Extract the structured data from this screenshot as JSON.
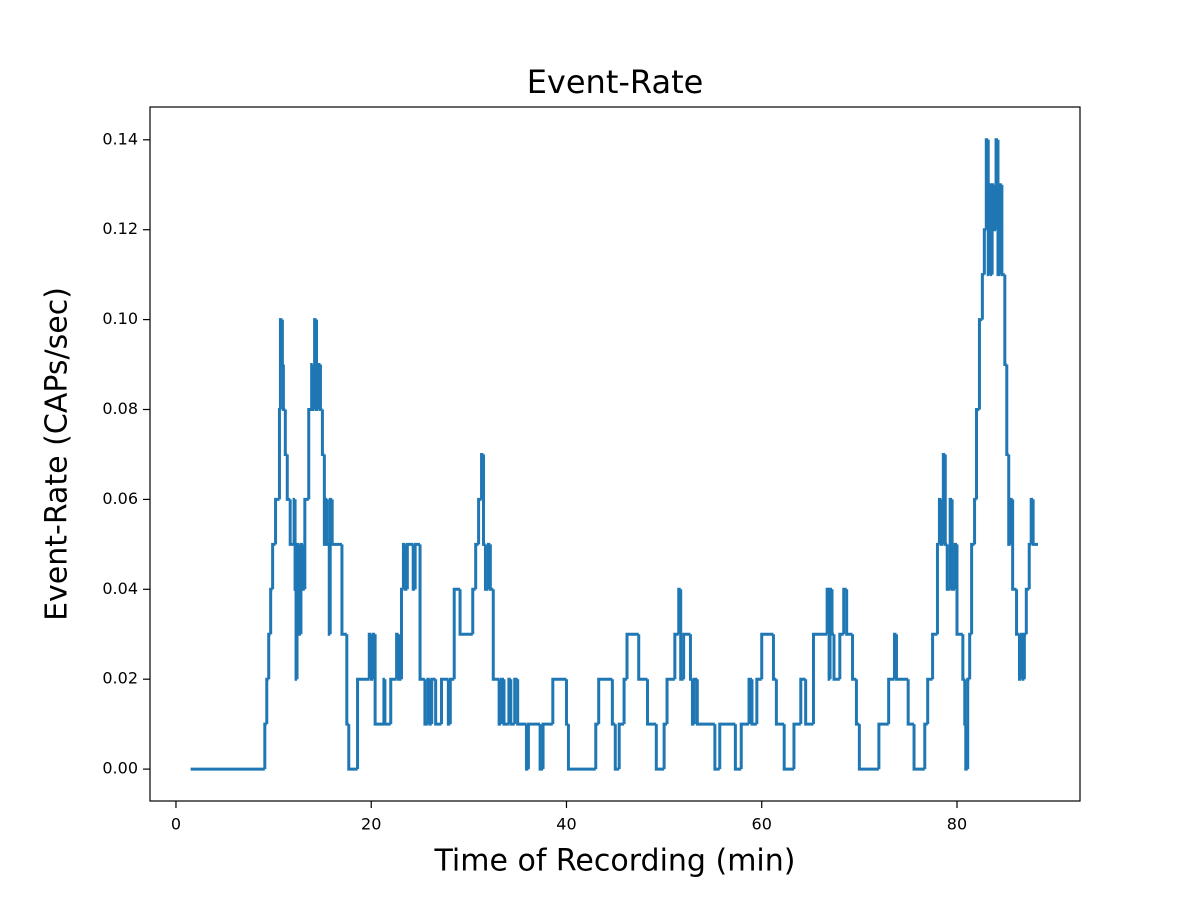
{
  "chart_data": {
    "type": "line",
    "step": "post",
    "title": "Event-Rate",
    "xlabel": "Time of Recording (min)",
    "ylabel": "Event-Rate (CAPs/sec)",
    "color": "#1f77b4",
    "xlim": [
      -2.66,
      92.6
    ],
    "ylim": [
      -0.0071,
      0.1473
    ],
    "xticks": [
      0,
      20,
      40,
      60,
      80
    ],
    "yticks": [
      {
        "value": 0,
        "label": "0.00"
      },
      {
        "value": 0.02,
        "label": "0.02"
      },
      {
        "value": 0.04,
        "label": "0.04"
      },
      {
        "value": 0.06,
        "label": "0.06"
      },
      {
        "value": 0.08,
        "label": "0.08"
      },
      {
        "value": 0.1,
        "label": "0.10"
      },
      {
        "value": 0.12,
        "label": "0.12"
      },
      {
        "value": 0.14,
        "label": "0.14"
      }
    ],
    "x": [
      1.5,
      9.1,
      9.3,
      9.5,
      9.7,
      9.9,
      10.2,
      10.6,
      10.7,
      10.9,
      11.0,
      11.2,
      11.4,
      11.7,
      12.1,
      12.2,
      12.3,
      12.4,
      12.6,
      12.8,
      13.0,
      13.2,
      13.6,
      13.9,
      14.0,
      14.2,
      14.4,
      14.6,
      14.8,
      15.0,
      15.2,
      15.4,
      15.5,
      15.7,
      15.8,
      16.0,
      17.0,
      17.5,
      17.7,
      18.6,
      19.8,
      20.0,
      20.2,
      20.4,
      21.3,
      21.4,
      22.0,
      22.6,
      22.8,
      23.1,
      23.3,
      23.5,
      23.7,
      24.3,
      24.5,
      25.0,
      25.5,
      25.8,
      26.0,
      26.2,
      26.6,
      27.2,
      27.9,
      28.1,
      28.5,
      29.1,
      30.4,
      30.7,
      31.0,
      31.3,
      31.5,
      31.7,
      32.0,
      32.2,
      32.5,
      33.1,
      33.3,
      33.6,
      34.1,
      34.3,
      34.7,
      35.0,
      35.9,
      36.1,
      37.3,
      37.6,
      38.6,
      40.0,
      40.2,
      43.0,
      43.3,
      44.7,
      45.0,
      45.4,
      45.9,
      46.2,
      47.4,
      48.3,
      49.2,
      50.0,
      50.3,
      51.1,
      51.5,
      51.7,
      52.0,
      52.7,
      52.9,
      53.1,
      53.4,
      55.2,
      55.7,
      57.3,
      57.9,
      58.7,
      59.0,
      59.5,
      60.0,
      61.2,
      61.5,
      62.3,
      63.3,
      64.0,
      64.5,
      65.3,
      66.7,
      66.9,
      67.0,
      67.2,
      67.4,
      68.0,
      68.4,
      68.7,
      69.3,
      69.7,
      70.0,
      72.0,
      73.0,
      73.6,
      73.8,
      75.0,
      75.6,
      76.7,
      77.0,
      77.5,
      78.0,
      78.2,
      78.4,
      78.6,
      78.8,
      79.0,
      79.3,
      79.5,
      79.8,
      80.0,
      80.6,
      80.8,
      80.9,
      81.1,
      81.3,
      81.5,
      81.8,
      82.0,
      82.3,
      82.6,
      82.8,
      83.0,
      83.2,
      83.3,
      83.5,
      83.6,
      83.8,
      84.0,
      84.2,
      84.4,
      84.6,
      84.9,
      85.1,
      85.3,
      85.5,
      85.7,
      86.1,
      86.4,
      86.6,
      86.8,
      86.9,
      87.1,
      87.4,
      87.6,
      87.8,
      88.3
    ],
    "values": [
      0,
      0.01,
      0.02,
      0.03,
      0.04,
      0.05,
      0.06,
      0.08,
      0.1,
      0.09,
      0.08,
      0.07,
      0.06,
      0.05,
      0.06,
      0.04,
      0.02,
      0.05,
      0.03,
      0.05,
      0.04,
      0.06,
      0.08,
      0.09,
      0.08,
      0.1,
      0.08,
      0.09,
      0.08,
      0.07,
      0.05,
      0.06,
      0.05,
      0.03,
      0.06,
      0.05,
      0.03,
      0.01,
      0,
      0.02,
      0.03,
      0.02,
      0.03,
      0.01,
      0.02,
      0.01,
      0.02,
      0.03,
      0.02,
      0.04,
      0.05,
      0.04,
      0.05,
      0.04,
      0.05,
      0.02,
      0.01,
      0.02,
      0.01,
      0.02,
      0.01,
      0.02,
      0.01,
      0.02,
      0.04,
      0.03,
      0.04,
      0.05,
      0.06,
      0.07,
      0.05,
      0.04,
      0.05,
      0.04,
      0.02,
      0.01,
      0.02,
      0.01,
      0.02,
      0.01,
      0.02,
      0.01,
      0,
      0.01,
      0,
      0.01,
      0.02,
      0.01,
      0,
      0.01,
      0.02,
      0.01,
      0,
      0.01,
      0.02,
      0.03,
      0.02,
      0.01,
      0,
      0.01,
      0.02,
      0.03,
      0.04,
      0.02,
      0.03,
      0.02,
      0.01,
      0.02,
      0.01,
      0,
      0.01,
      0,
      0.01,
      0.02,
      0.01,
      0.02,
      0.03,
      0.02,
      0.01,
      0,
      0.01,
      0.02,
      0.01,
      0.03,
      0.04,
      0.02,
      0.04,
      0.03,
      0.02,
      0.03,
      0.04,
      0.03,
      0.02,
      0.01,
      0,
      0.01,
      0.02,
      0.03,
      0.02,
      0.01,
      0,
      0.01,
      0.02,
      0.03,
      0.05,
      0.06,
      0.05,
      0.07,
      0.05,
      0.04,
      0.06,
      0.04,
      0.05,
      0.03,
      0.02,
      0.01,
      0,
      0.02,
      0.03,
      0.05,
      0.06,
      0.08,
      0.1,
      0.11,
      0.12,
      0.14,
      0.11,
      0.13,
      0.11,
      0.13,
      0.12,
      0.14,
      0.11,
      0.13,
      0.11,
      0.09,
      0.07,
      0.05,
      0.06,
      0.04,
      0.03,
      0.02,
      0.03,
      0.02,
      0.03,
      0.04,
      0.05,
      0.06,
      0.05,
      0.05
    ]
  }
}
